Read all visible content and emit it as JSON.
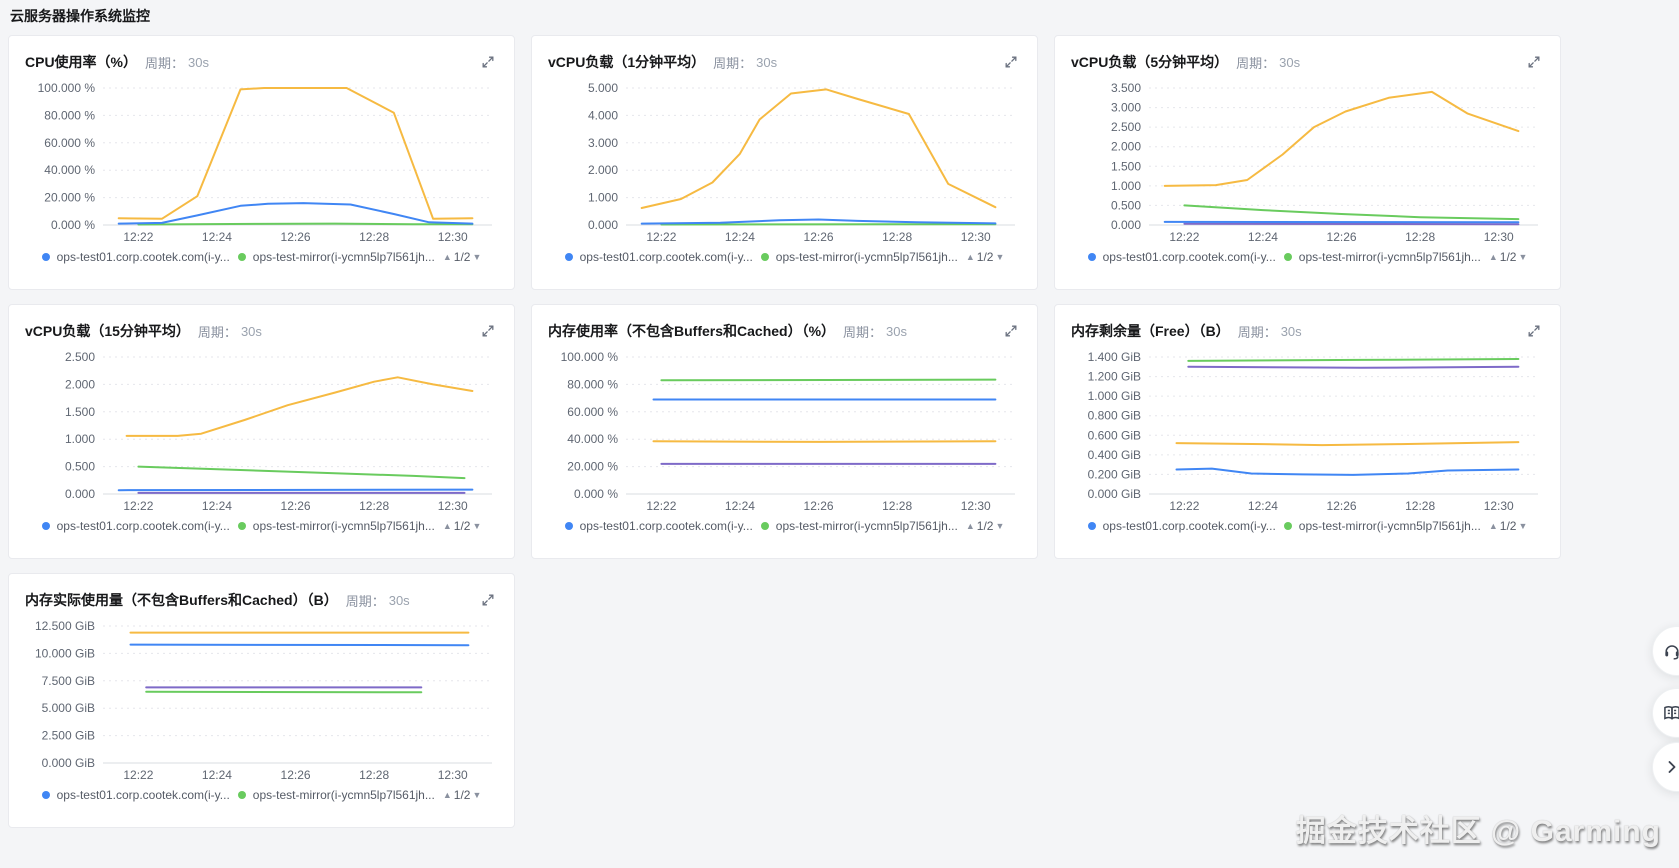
{
  "page": {
    "title": "云服务器操作系统监控",
    "watermark": "掘金技术社区 @ Garming"
  },
  "colors": {
    "blue": "#4086f4",
    "green": "#69cb5e",
    "yellow": "#f6ba42",
    "purple": "#7e6ac8",
    "grid": "#e5e6eb",
    "baseline": "#d9dce1",
    "axis_text": "#5f6672"
  },
  "legend": {
    "items": [
      {
        "color": "blue",
        "label": "ops-test01.corp.cootek.com(i-y..."
      },
      {
        "color": "green",
        "label": "ops-test-mirror(i-ycmn5lp7l561jh..."
      }
    ],
    "pagination": {
      "prev": "▲",
      "text": "1/2",
      "next": "▼"
    }
  },
  "floating_buttons": [
    {
      "name": "support",
      "icon": "headset-icon"
    },
    {
      "name": "docs",
      "icon": "book-icon"
    },
    {
      "name": "collapse",
      "icon": "chevron-right-icon"
    }
  ],
  "chart_data": [
    {
      "type": "line",
      "title": "CPU使用率（%）",
      "period_label": "周期：",
      "period_value": "30s",
      "ylim": [
        0,
        100
      ],
      "y_tick_labels": [
        "100.000 %",
        "80.000 %",
        "60.000 %",
        "40.000 %",
        "20.000 %",
        "0.000 %"
      ],
      "x_domain": [
        21.1,
        31.0
      ],
      "x_tick_minutes": [
        22,
        24,
        26,
        28,
        30
      ],
      "x_tick_labels": [
        "12:22",
        "12:24",
        "12:26",
        "12:28",
        "12:30"
      ],
      "series": [
        {
          "color": "yellow",
          "name": "",
          "points": [
            [
              21.5,
              5
            ],
            [
              22.6,
              4.5
            ],
            [
              23.5,
              21
            ],
            [
              24.6,
              99
            ],
            [
              25.2,
              100
            ],
            [
              27.3,
              100
            ],
            [
              28.5,
              82
            ],
            [
              29.5,
              4.5
            ],
            [
              30.5,
              5
            ]
          ]
        },
        {
          "color": "green",
          "name": "ops-test-mirror(i-ycmn5lp7l561jh...",
          "points": [
            [
              22.0,
              0.4
            ],
            [
              25.0,
              0.8
            ],
            [
              27.0,
              1.0
            ],
            [
              29.0,
              0.6
            ],
            [
              30.5,
              0.5
            ]
          ]
        },
        {
          "color": "blue",
          "name": "ops-test01.corp.cootek.com(i-y...",
          "points": [
            [
              21.5,
              1
            ],
            [
              22.6,
              1.5
            ],
            [
              23.5,
              7
            ],
            [
              24.6,
              14
            ],
            [
              25.3,
              15.5
            ],
            [
              26.2,
              16
            ],
            [
              27.4,
              15
            ],
            [
              28.5,
              8
            ],
            [
              29.4,
              2
            ],
            [
              30.5,
              1
            ]
          ]
        }
      ]
    },
    {
      "type": "line",
      "title": "vCPU负载（1分钟平均）",
      "period_label": "周期：",
      "period_value": "30s",
      "ylim": [
        0,
        5
      ],
      "y_tick_labels": [
        "5.000",
        "4.000",
        "3.000",
        "2.000",
        "1.000",
        "0.000"
      ],
      "x_domain": [
        21.1,
        31.0
      ],
      "x_tick_minutes": [
        22,
        24,
        26,
        28,
        30
      ],
      "x_tick_labels": [
        "12:22",
        "12:24",
        "12:26",
        "12:28",
        "12:30"
      ],
      "series": [
        {
          "color": "yellow",
          "name": "",
          "points": [
            [
              21.5,
              0.62
            ],
            [
              22.5,
              0.95
            ],
            [
              23.3,
              1.55
            ],
            [
              24.0,
              2.6
            ],
            [
              24.5,
              3.85
            ],
            [
              25.3,
              4.8
            ],
            [
              26.2,
              4.95
            ],
            [
              27.0,
              4.6
            ],
            [
              28.3,
              4.05
            ],
            [
              29.3,
              1.5
            ],
            [
              30.5,
              0.65
            ]
          ]
        },
        {
          "color": "green",
          "name": "ops-test-mirror(i-ycmn5lp7l561jh...",
          "points": [
            [
              22.0,
              0.02
            ],
            [
              30.5,
              0.03
            ]
          ]
        },
        {
          "color": "blue",
          "name": "ops-test01.corp.cootek.com(i-y...",
          "points": [
            [
              21.5,
              0.05
            ],
            [
              23.5,
              0.08
            ],
            [
              25.0,
              0.17
            ],
            [
              26.0,
              0.2
            ],
            [
              27.0,
              0.15
            ],
            [
              28.5,
              0.1
            ],
            [
              30.5,
              0.06
            ]
          ]
        }
      ]
    },
    {
      "type": "line",
      "title": "vCPU负载（5分钟平均）",
      "period_label": "周期：",
      "period_value": "30s",
      "ylim": [
        0,
        3.5
      ],
      "y_tick_labels": [
        "3.500",
        "3.000",
        "2.500",
        "2.000",
        "1.500",
        "1.000",
        "0.500",
        "0.000"
      ],
      "x_domain": [
        21.1,
        31.0
      ],
      "x_tick_minutes": [
        22,
        24,
        26,
        28,
        30
      ],
      "x_tick_labels": [
        "12:22",
        "12:24",
        "12:26",
        "12:28",
        "12:30"
      ],
      "series": [
        {
          "color": "yellow",
          "name": "",
          "points": [
            [
              21.5,
              1.0
            ],
            [
              22.8,
              1.02
            ],
            [
              23.6,
              1.15
            ],
            [
              24.5,
              1.8
            ],
            [
              25.3,
              2.5
            ],
            [
              26.1,
              2.9
            ],
            [
              27.2,
              3.25
            ],
            [
              28.3,
              3.4
            ],
            [
              29.2,
              2.85
            ],
            [
              30.5,
              2.4
            ]
          ]
        },
        {
          "color": "green",
          "name": "ops-test-mirror(i-ycmn5lp7l561jh...",
          "points": [
            [
              22.0,
              0.5
            ],
            [
              24.0,
              0.38
            ],
            [
              26.0,
              0.28
            ],
            [
              28.0,
              0.2
            ],
            [
              30.5,
              0.15
            ]
          ]
        },
        {
          "color": "purple",
          "name": "",
          "points": [
            [
              22.0,
              0.03
            ],
            [
              30.5,
              0.02
            ]
          ]
        },
        {
          "color": "blue",
          "name": "ops-test01.corp.cootek.com(i-y...",
          "points": [
            [
              21.5,
              0.08
            ],
            [
              30.5,
              0.07
            ]
          ]
        }
      ]
    },
    {
      "type": "line",
      "title": "vCPU负载（15分钟平均）",
      "period_label": "周期：",
      "period_value": "30s",
      "ylim": [
        0,
        2.5
      ],
      "y_tick_labels": [
        "2.500",
        "2.000",
        "1.500",
        "1.000",
        "0.500",
        "0.000"
      ],
      "x_domain": [
        21.1,
        31.0
      ],
      "x_tick_minutes": [
        22,
        24,
        26,
        28,
        30
      ],
      "x_tick_labels": [
        "12:22",
        "12:24",
        "12:26",
        "12:28",
        "12:30"
      ],
      "series": [
        {
          "color": "yellow",
          "name": "",
          "points": [
            [
              21.7,
              1.06
            ],
            [
              23.0,
              1.06
            ],
            [
              23.6,
              1.1
            ],
            [
              24.7,
              1.35
            ],
            [
              25.8,
              1.62
            ],
            [
              27.0,
              1.85
            ],
            [
              28.0,
              2.05
            ],
            [
              28.6,
              2.13
            ],
            [
              29.5,
              2.0
            ],
            [
              30.5,
              1.88
            ]
          ]
        },
        {
          "color": "green",
          "name": "ops-test-mirror(i-ycmn5lp7l561jh...",
          "points": [
            [
              22.0,
              0.5
            ],
            [
              24.5,
              0.44
            ],
            [
              27.0,
              0.38
            ],
            [
              29.0,
              0.33
            ],
            [
              30.3,
              0.29
            ]
          ]
        },
        {
          "color": "purple",
          "name": "",
          "points": [
            [
              22.0,
              0.02
            ],
            [
              30.3,
              0.02
            ]
          ]
        },
        {
          "color": "blue",
          "name": "ops-test01.corp.cootek.com(i-y...",
          "points": [
            [
              21.5,
              0.07
            ],
            [
              30.5,
              0.08
            ]
          ]
        }
      ]
    },
    {
      "type": "line",
      "title": "内存使用率（不包含Buffers和Cached）（%）",
      "period_label": "周期：",
      "period_value": "30s",
      "ylim": [
        0,
        100
      ],
      "y_tick_labels": [
        "100.000 %",
        "80.000 %",
        "60.000 %",
        "40.000 %",
        "20.000 %",
        "0.000 %"
      ],
      "x_domain": [
        21.1,
        31.0
      ],
      "x_tick_minutes": [
        22,
        24,
        26,
        28,
        30
      ],
      "x_tick_labels": [
        "12:22",
        "12:24",
        "12:26",
        "12:28",
        "12:30"
      ],
      "series": [
        {
          "color": "green",
          "name": "ops-test-mirror(i-ycmn5lp7l561jh...",
          "points": [
            [
              22.0,
              83
            ],
            [
              30.5,
              83.5
            ]
          ]
        },
        {
          "color": "blue",
          "name": "ops-test01.corp.cootek.com(i-y...",
          "points": [
            [
              21.8,
              69
            ],
            [
              30.5,
              69
            ]
          ]
        },
        {
          "color": "yellow",
          "name": "",
          "points": [
            [
              21.8,
              38.5
            ],
            [
              26.0,
              38
            ],
            [
              30.5,
              38.5
            ]
          ]
        },
        {
          "color": "purple",
          "name": "",
          "points": [
            [
              22.0,
              22
            ],
            [
              30.5,
              22
            ]
          ]
        }
      ]
    },
    {
      "type": "line",
      "title": "内存剩余量（Free）（B）",
      "period_label": "周期：",
      "period_value": "30s",
      "ylim": [
        0,
        1.4
      ],
      "y_tick_labels": [
        "1.400 GiB",
        "1.200 GiB",
        "1.000 GiB",
        "0.800 GiB",
        "0.600 GiB",
        "0.400 GiB",
        "0.200 GiB",
        "0.000 GiB"
      ],
      "x_domain": [
        21.1,
        31.0
      ],
      "x_tick_minutes": [
        22,
        24,
        26,
        28,
        30
      ],
      "x_tick_labels": [
        "12:22",
        "12:24",
        "12:26",
        "12:28",
        "12:30"
      ],
      "series": [
        {
          "color": "green",
          "name": "ops-test-mirror(i-ycmn5lp7l561jh...",
          "points": [
            [
              22.1,
              1.36
            ],
            [
              26.5,
              1.37
            ],
            [
              30.5,
              1.38
            ]
          ]
        },
        {
          "color": "purple",
          "name": "",
          "points": [
            [
              22.1,
              1.3
            ],
            [
              26.5,
              1.29
            ],
            [
              30.5,
              1.3
            ]
          ]
        },
        {
          "color": "yellow",
          "name": "",
          "points": [
            [
              21.8,
              0.52
            ],
            [
              24.0,
              0.51
            ],
            [
              25.5,
              0.5
            ],
            [
              27.5,
              0.51
            ],
            [
              29.0,
              0.52
            ],
            [
              30.5,
              0.53
            ]
          ]
        },
        {
          "color": "blue",
          "name": "ops-test01.corp.cootek.com(i-y...",
          "points": [
            [
              21.8,
              0.25
            ],
            [
              22.7,
              0.26
            ],
            [
              23.7,
              0.21
            ],
            [
              25.0,
              0.2
            ],
            [
              26.3,
              0.195
            ],
            [
              27.7,
              0.21
            ],
            [
              28.7,
              0.24
            ],
            [
              30.5,
              0.25
            ]
          ]
        }
      ]
    },
    {
      "type": "line",
      "title": "内存实际使用量（不包含Buffers和Cached）（B）",
      "period_label": "周期：",
      "period_value": "30s",
      "ylim": [
        0,
        12.5
      ],
      "y_tick_labels": [
        "12.500 GiB",
        "10.000 GiB",
        "7.500 GiB",
        "5.000 GiB",
        "2.500 GiB",
        "0.000 GiB"
      ],
      "x_domain": [
        21.1,
        31.0
      ],
      "x_tick_minutes": [
        22,
        24,
        26,
        28,
        30
      ],
      "x_tick_labels": [
        "12:22",
        "12:24",
        "12:26",
        "12:28",
        "12:30"
      ],
      "series": [
        {
          "color": "yellow",
          "name": "",
          "points": [
            [
              21.8,
              11.9
            ],
            [
              30.4,
              11.9
            ]
          ]
        },
        {
          "color": "blue",
          "name": "ops-test01.corp.cootek.com(i-y...",
          "points": [
            [
              21.8,
              10.8
            ],
            [
              30.4,
              10.75
            ]
          ]
        },
        {
          "color": "purple",
          "name": "",
          "points": [
            [
              22.2,
              6.9
            ],
            [
              29.2,
              6.9
            ]
          ]
        },
        {
          "color": "green",
          "name": "ops-test-mirror(i-ycmn5lp7l561jh...",
          "points": [
            [
              22.2,
              6.5
            ],
            [
              29.2,
              6.45
            ]
          ]
        }
      ]
    }
  ]
}
